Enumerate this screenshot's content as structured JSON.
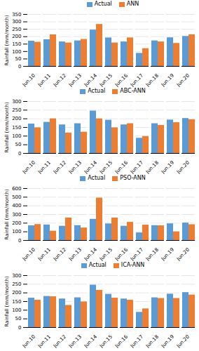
{
  "chart_data": [
    {
      "type": "bar",
      "categories": [
        "Jun.10",
        "Jun.11",
        "Jun.12",
        "Jun.13",
        "Jun.14",
        "Jun.15",
        "Jun.16",
        "Jun.17",
        "Jun.18",
        "Jun.19",
        "Jun.20"
      ],
      "series": [
        {
          "name": "Actual",
          "color": "#5b9bd5",
          "values": [
            170,
            180,
            165,
            172,
            245,
            192,
            165,
            88,
            172,
            193,
            202
          ]
        },
        {
          "name": "ANN",
          "color": "#ed7d31",
          "values": [
            163,
            213,
            158,
            182,
            283,
            158,
            192,
            120,
            165,
            155,
            213
          ]
        }
      ],
      "ylabel": "Rainfall (mm/month)",
      "ylim": [
        0,
        350
      ],
      "yticks": [
        0,
        50,
        100,
        150,
        200,
        250,
        300,
        350
      ],
      "grid": true,
      "legend": "top"
    },
    {
      "type": "bar",
      "categories": [
        "Jun.10",
        "Jun.11",
        "Jun.12",
        "Jun.13",
        "Jun.14",
        "Jun.15",
        "Jun.16",
        "Jun.17",
        "Jun.18",
        "Jun.19",
        "Jun.20"
      ],
      "series": [
        {
          "name": "Actual",
          "color": "#5b9bd5",
          "values": [
            170,
            180,
            165,
            172,
            245,
            192,
            165,
            88,
            172,
            193,
            202
          ]
        },
        {
          "name": "ABC-ANN",
          "color": "#ed7d31",
          "values": [
            148,
            200,
            118,
            123,
            200,
            148,
            172,
            98,
            162,
            178,
            195
          ]
        }
      ],
      "ylabel": "Rainfall (mm/month)",
      "ylim": [
        0,
        300
      ],
      "yticks": [
        0,
        50,
        100,
        150,
        200,
        250,
        300
      ],
      "grid": true,
      "legend": "top"
    },
    {
      "type": "bar",
      "categories": [
        "Jun.10",
        "Jun.11",
        "Jun.12",
        "Jun.13",
        "Jun.14",
        "Jun.15",
        "Jun.16",
        "Jun.17",
        "Jun.18",
        "Jun.19",
        "Jun.20"
      ],
      "series": [
        {
          "name": "Actual",
          "color": "#5b9bd5",
          "values": [
            170,
            180,
            165,
            172,
            245,
            192,
            165,
            88,
            172,
            193,
            202
          ]
        },
        {
          "name": "PSO-ANN",
          "color": "#ed7d31",
          "values": [
            185,
            108,
            260,
            145,
            490,
            260,
            210,
            178,
            170,
            100,
            183
          ]
        }
      ],
      "ylabel": "Rainfall (mm/month)",
      "ylim": [
        0,
        600
      ],
      "yticks": [
        0,
        100,
        200,
        300,
        400,
        500,
        600
      ],
      "grid": true,
      "legend": "top"
    },
    {
      "type": "bar",
      "categories": [
        "Jun.10",
        "Jun.11",
        "Jun.12",
        "Jun.13",
        "Jun.14",
        "Jun.15",
        "Jun.16",
        "Jun.17",
        "Jun.18",
        "Jun.19",
        "Jun.20"
      ],
      "series": [
        {
          "name": "Actual",
          "color": "#5b9bd5",
          "values": [
            170,
            180,
            165,
            172,
            245,
            192,
            165,
            88,
            172,
            193,
            202
          ]
        },
        {
          "name": "ICA-ANN",
          "color": "#ed7d31",
          "values": [
            158,
            178,
            128,
            148,
            215,
            170,
            158,
            108,
            168,
            168,
            188
          ]
        }
      ],
      "ylabel": "Rainfall (mm/month)",
      "ylim": [
        0,
        300
      ],
      "yticks": [
        0,
        50,
        100,
        150,
        200,
        250,
        300
      ],
      "grid": true,
      "legend": "top"
    }
  ]
}
